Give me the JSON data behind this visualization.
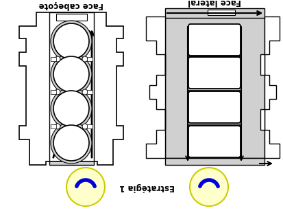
{
  "title_left": "Face cabeçote",
  "title_right": "Face lateral",
  "subtitle": "Estratégia 1",
  "bg_color": "#ffffff",
  "gray_fill": "#b0b0b0",
  "light_gray": "#d0d0d0",
  "dark_outline": "#000000",
  "tool_fill": "#ffffcc",
  "tool_border": "#cccc00",
  "tool_arrow": "#0000dd",
  "fig_width": 4.14,
  "fig_height": 3.1,
  "dpi": 100
}
